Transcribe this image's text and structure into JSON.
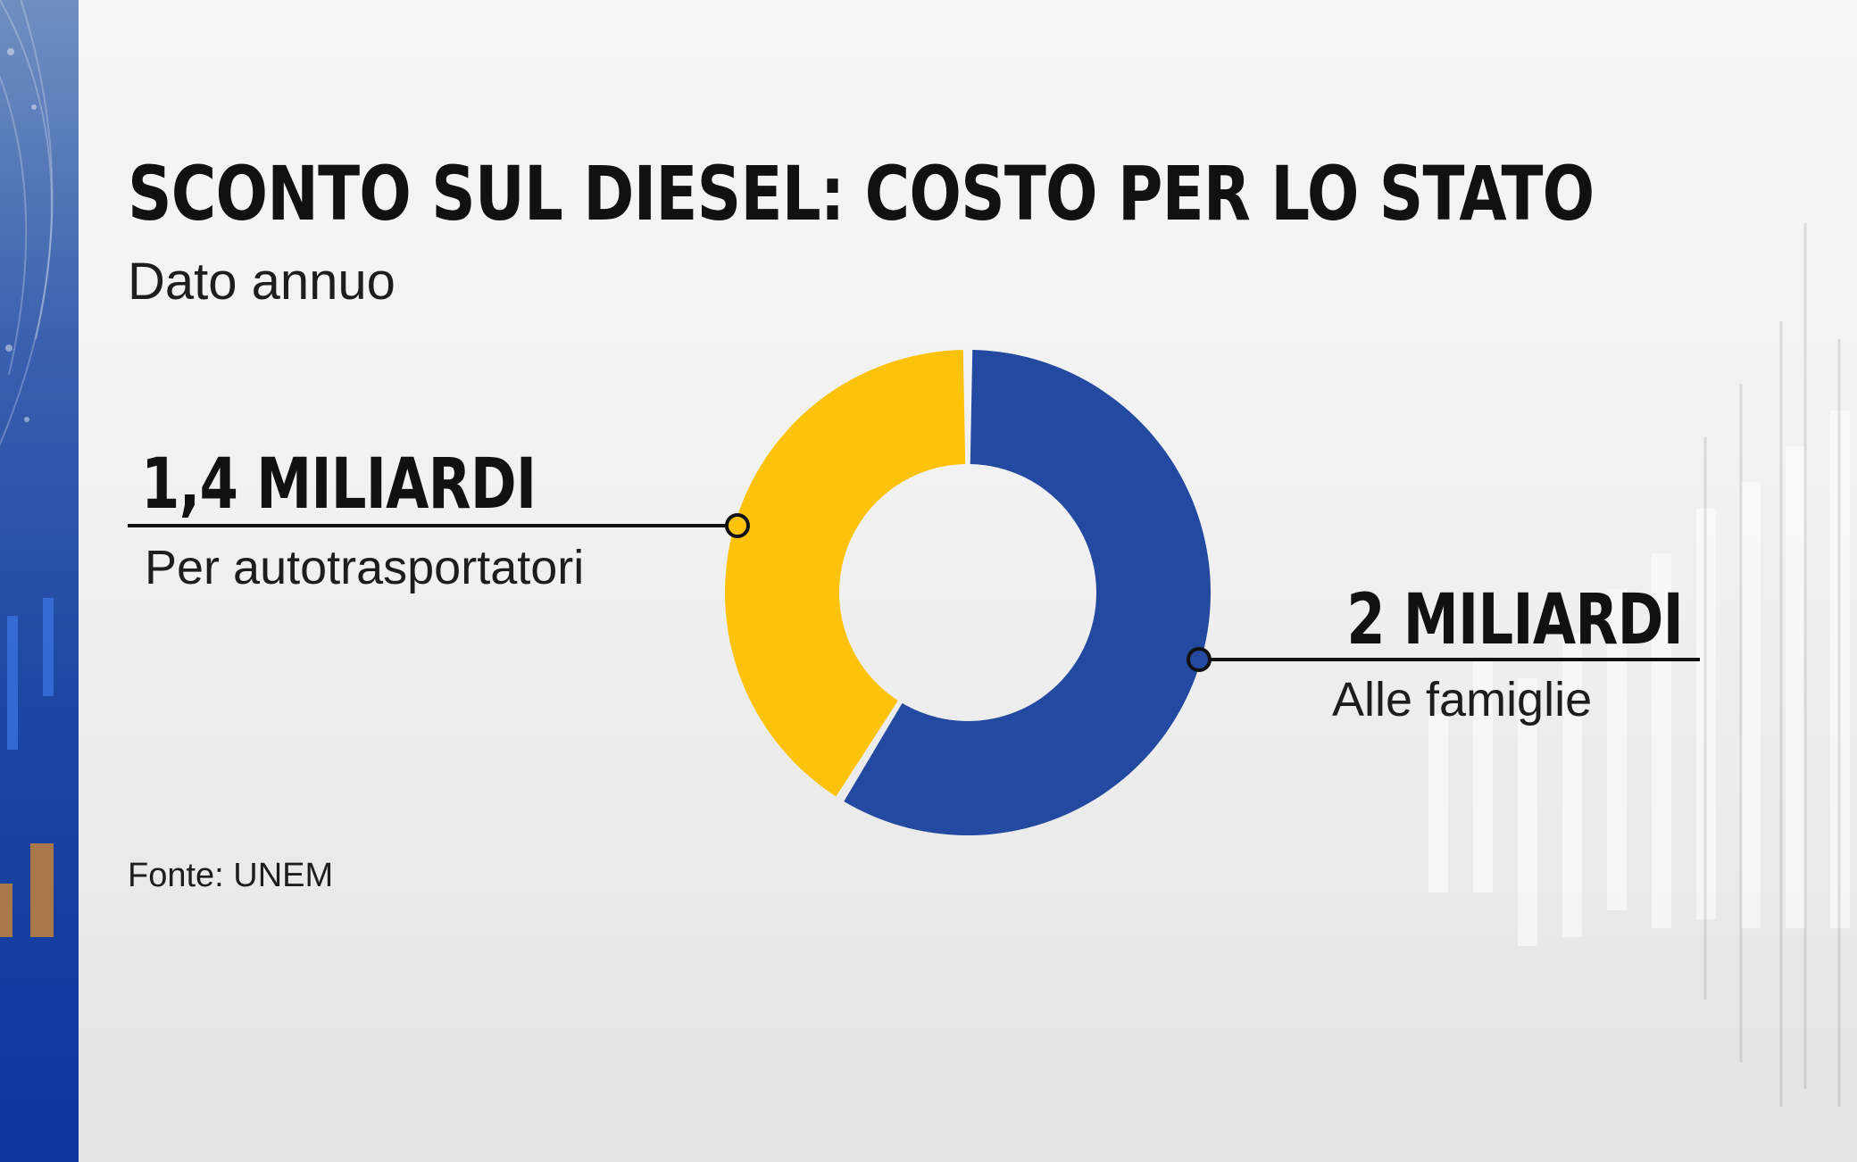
{
  "chart_data": {
    "type": "pie",
    "title": "SCONTO SUL DIESEL: COSTO PER LO STATO",
    "subtitle": "Dato annuo",
    "donut": true,
    "slices": [
      {
        "label": "Per autotrasportatori",
        "value": 1.4,
        "value_label": "1,4 MILIARDI",
        "color": "#FDC20A"
      },
      {
        "label": "Alle famiglie",
        "value": 2,
        "value_label": "2 MILIARDI",
        "color": "#2349A0"
      }
    ],
    "source": "Fonte: UNEM"
  },
  "colors": {
    "accent_yellow": "#FDC20A",
    "accent_blue": "#2349A0",
    "text": "#111111"
  }
}
